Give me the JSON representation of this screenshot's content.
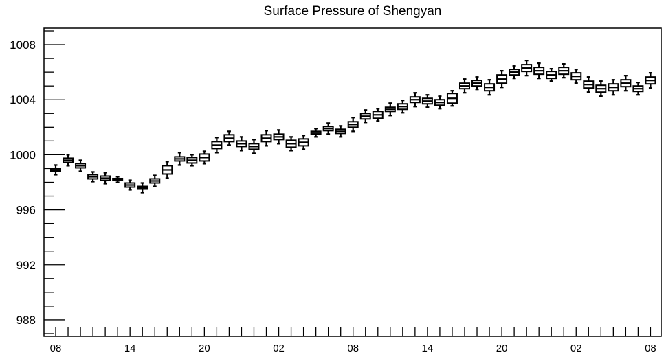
{
  "chart_data": {
    "type": "box",
    "title": "Surface Pressure of Shengyan",
    "xlabel": "",
    "ylabel": "",
    "ylim": [
      986.8,
      1009.2
    ],
    "yticks": [
      988,
      992,
      996,
      1000,
      1004,
      1008
    ],
    "grid": false,
    "x_tick_labels": [
      "08",
      "14",
      "20",
      "02",
      "08",
      "14",
      "20",
      "02",
      "08"
    ],
    "x_tick_label_positions": [
      0,
      6,
      12,
      18,
      24,
      30,
      36,
      42,
      48
    ],
    "x_count": 49,
    "series": [
      {
        "values": [
          998.9,
          999.6,
          999.2,
          998.4,
          998.3,
          998.2,
          997.8,
          997.6,
          998.1,
          998.9,
          999.7,
          999.6,
          999.8,
          1000.7,
          1001.2,
          1000.8,
          1000.6,
          1001.2,
          1001.3,
          1000.8,
          1000.9,
          1001.6,
          1001.9,
          1001.7,
          1002.2,
          1002.8,
          1002.9,
          1003.3,
          1003.5,
          1004.0,
          1003.9,
          1003.8,
          1004.1,
          1005.0,
          1005.2,
          1004.9,
          1005.5,
          1006.0,
          1006.3,
          1006.1,
          1005.8,
          1006.1,
          1005.7,
          1005.1,
          1004.8,
          1004.9,
          1005.2,
          1004.8,
          1005.4
        ],
        "box_half_heights": [
          0.1,
          0.15,
          0.15,
          0.15,
          0.15,
          0.05,
          0.15,
          0.1,
          0.15,
          0.3,
          0.15,
          0.2,
          0.25,
          0.25,
          0.25,
          0.2,
          0.2,
          0.25,
          0.2,
          0.25,
          0.25,
          0.1,
          0.15,
          0.15,
          0.2,
          0.2,
          0.25,
          0.15,
          0.2,
          0.2,
          0.2,
          0.2,
          0.35,
          0.2,
          0.2,
          0.25,
          0.3,
          0.2,
          0.25,
          0.25,
          0.25,
          0.25,
          0.25,
          0.25,
          0.25,
          0.25,
          0.25,
          0.2,
          0.25
        ],
        "whisker_half_lengths": [
          0.35,
          0.4,
          0.4,
          0.35,
          0.4,
          0.2,
          0.35,
          0.35,
          0.4,
          0.6,
          0.45,
          0.4,
          0.45,
          0.55,
          0.5,
          0.5,
          0.5,
          0.55,
          0.5,
          0.5,
          0.5,
          0.3,
          0.4,
          0.4,
          0.5,
          0.45,
          0.45,
          0.45,
          0.45,
          0.5,
          0.45,
          0.45,
          0.55,
          0.5,
          0.45,
          0.55,
          0.6,
          0.45,
          0.55,
          0.55,
          0.45,
          0.5,
          0.5,
          0.55,
          0.55,
          0.55,
          0.55,
          0.45,
          0.55
        ]
      }
    ]
  }
}
